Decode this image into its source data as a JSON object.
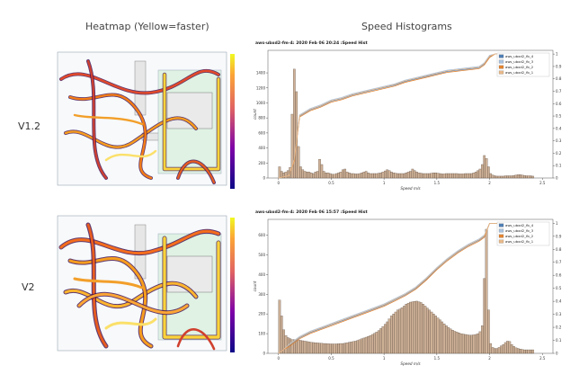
{
  "headers": {
    "heatmap": "Heatmap (Yellow=faster)",
    "histograms": "Speed Histograms"
  },
  "rows": [
    "V1.2",
    "V2"
  ],
  "chart_data": [
    {
      "type": "bar",
      "title": "aws-ubxd2-fm-4: 2020 Feb 06 20:24 :Speed Hist",
      "xlabel": "Speed m/s",
      "ylabel": "count",
      "xlim": [
        -0.1,
        2.6
      ],
      "ylim": [
        0,
        1700
      ],
      "xticks": [
        "0",
        "0.5",
        "1",
        "1.5",
        "2",
        "2.5"
      ],
      "yticks": [
        "0",
        "200",
        "400",
        "600",
        "800",
        "1000",
        "1200",
        "1400"
      ],
      "y2ticks": [
        "0",
        "0.1",
        "0.2",
        "0.3",
        "0.4",
        "0.5",
        "0.6",
        "0.7",
        "0.8",
        "0.9",
        "1"
      ],
      "legend": [
        "aws_ubxd2_fb_4",
        "aws_ubxd2_fb_3",
        "aws_ubxd2_fb_2",
        "aws_ubxd2_fb_1"
      ],
      "legend_colors": [
        "#4f7fb5",
        "#aac3df",
        "#e38431",
        "#e8b98a"
      ],
      "bin_width": 0.02,
      "hist_x": [
        0.0,
        0.02,
        0.04,
        0.06,
        0.08,
        0.1,
        0.12,
        0.14,
        0.16,
        0.18,
        0.2,
        0.22,
        0.24,
        0.26,
        0.28,
        0.3,
        0.32,
        0.34,
        0.36,
        0.38,
        0.4,
        0.42,
        0.44,
        0.46,
        0.48,
        0.5,
        0.52,
        0.54,
        0.56,
        0.58,
        0.6,
        0.62,
        0.64,
        0.66,
        0.68,
        0.7,
        0.72,
        0.74,
        0.76,
        0.78,
        0.8,
        0.82,
        0.84,
        0.86,
        0.88,
        0.9,
        0.92,
        0.94,
        0.96,
        0.98,
        1.0,
        1.02,
        1.04,
        1.06,
        1.08,
        1.1,
        1.12,
        1.14,
        1.16,
        1.18,
        1.2,
        1.22,
        1.24,
        1.26,
        1.28,
        1.3,
        1.32,
        1.34,
        1.36,
        1.38,
        1.4,
        1.42,
        1.44,
        1.46,
        1.48,
        1.5,
        1.52,
        1.54,
        1.56,
        1.58,
        1.6,
        1.62,
        1.64,
        1.66,
        1.68,
        1.7,
        1.72,
        1.74,
        1.76,
        1.78,
        1.8,
        1.82,
        1.84,
        1.86,
        1.88,
        1.9,
        1.92,
        1.94,
        1.96,
        1.98,
        2.0,
        2.02,
        2.04,
        2.06,
        2.08,
        2.1,
        2.12,
        2.14,
        2.16,
        2.18,
        2.2,
        2.22,
        2.24,
        2.26,
        2.28,
        2.3,
        2.32,
        2.34,
        2.36,
        2.38,
        2.4
      ],
      "hist_y": [
        150,
        90,
        70,
        80,
        100,
        140,
        850,
        1450,
        1150,
        420,
        150,
        110,
        90,
        80,
        80,
        70,
        60,
        80,
        90,
        250,
        180,
        90,
        70,
        70,
        60,
        50,
        50,
        60,
        70,
        80,
        110,
        120,
        80,
        70,
        60,
        60,
        55,
        55,
        60,
        70,
        80,
        90,
        70,
        60,
        60,
        60,
        60,
        65,
        70,
        80,
        95,
        110,
        100,
        80,
        70,
        65,
        60,
        60,
        60,
        60,
        70,
        80,
        90,
        120,
        100,
        80,
        70,
        65,
        60,
        60,
        60,
        60,
        65,
        70,
        70,
        65,
        60,
        55,
        55,
        60,
        60,
        60,
        60,
        60,
        60,
        55,
        55,
        55,
        60,
        60,
        60,
        60,
        70,
        80,
        100,
        120,
        180,
        300,
        260,
        150,
        60,
        40,
        30,
        25,
        25,
        25,
        25,
        30,
        30,
        30,
        30,
        35,
        40,
        45,
        45,
        40,
        35,
        30,
        30,
        30,
        25
      ],
      "cdf_x": [
        0.0,
        0.1,
        0.15,
        0.2,
        0.3,
        0.4,
        0.5,
        0.6,
        0.7,
        0.8,
        0.9,
        1.0,
        1.1,
        1.2,
        1.3,
        1.4,
        1.5,
        1.6,
        1.7,
        1.8,
        1.9,
        1.95,
        2.0,
        2.05,
        2.1,
        2.5
      ],
      "cdf_y": [
        0.0,
        0.02,
        0.15,
        0.5,
        0.55,
        0.58,
        0.62,
        0.64,
        0.67,
        0.69,
        0.71,
        0.73,
        0.75,
        0.78,
        0.8,
        0.82,
        0.84,
        0.86,
        0.87,
        0.88,
        0.89,
        0.92,
        0.98,
        1.0,
        1.0,
        1.0
      ]
    },
    {
      "type": "bar",
      "title": "aws-ubxd2-fm-4: 2020 Feb 06 15:57 :Speed Hist",
      "xlabel": "Speed m/s",
      "ylabel": "count",
      "xlim": [
        -0.1,
        2.6
      ],
      "ylim": [
        0,
        680
      ],
      "xticks": [
        "0",
        "0.5",
        "1",
        "1.5",
        "2",
        "2.5"
      ],
      "yticks": [
        "0",
        "100",
        "200",
        "300",
        "400",
        "500",
        "600"
      ],
      "y2ticks": [
        "0",
        "0.1",
        "0.2",
        "0.3",
        "0.4",
        "0.5",
        "0.6",
        "0.7",
        "0.8",
        "0.9",
        "1"
      ],
      "legend": [
        "aws_ubxd2_fb_4",
        "aws_ubxd2_fb_3",
        "aws_ubxd2_fb_2",
        "aws_ubxd2_fb_1"
      ],
      "legend_colors": [
        "#4f7fb5",
        "#aac3df",
        "#e38431",
        "#e8b98a"
      ],
      "bin_width": 0.02,
      "hist_x": [
        0.0,
        0.02,
        0.04,
        0.06,
        0.08,
        0.1,
        0.12,
        0.14,
        0.16,
        0.18,
        0.2,
        0.22,
        0.24,
        0.26,
        0.28,
        0.3,
        0.32,
        0.34,
        0.36,
        0.38,
        0.4,
        0.42,
        0.44,
        0.46,
        0.48,
        0.5,
        0.52,
        0.54,
        0.56,
        0.58,
        0.6,
        0.62,
        0.64,
        0.66,
        0.68,
        0.7,
        0.72,
        0.74,
        0.76,
        0.78,
        0.8,
        0.82,
        0.84,
        0.86,
        0.88,
        0.9,
        0.92,
        0.94,
        0.96,
        0.98,
        1.0,
        1.02,
        1.04,
        1.06,
        1.08,
        1.1,
        1.12,
        1.14,
        1.16,
        1.18,
        1.2,
        1.22,
        1.24,
        1.26,
        1.28,
        1.3,
        1.32,
        1.34,
        1.36,
        1.38,
        1.4,
        1.42,
        1.44,
        1.46,
        1.48,
        1.5,
        1.52,
        1.54,
        1.56,
        1.58,
        1.6,
        1.62,
        1.64,
        1.66,
        1.68,
        1.7,
        1.72,
        1.74,
        1.76,
        1.78,
        1.8,
        1.82,
        1.84,
        1.86,
        1.88,
        1.9,
        1.92,
        1.94,
        1.96,
        1.98,
        2.0,
        2.02,
        2.04,
        2.06,
        2.08,
        2.1,
        2.12,
        2.14,
        2.16,
        2.18,
        2.2,
        2.22,
        2.24,
        2.26,
        2.28,
        2.3,
        2.32,
        2.34,
        2.36,
        2.38,
        2.4
      ],
      "hist_y": [
        270,
        190,
        120,
        90,
        80,
        75,
        70,
        70,
        70,
        68,
        66,
        64,
        62,
        60,
        58,
        56,
        55,
        54,
        53,
        52,
        51,
        50,
        50,
        49,
        48,
        48,
        48,
        48,
        49,
        50,
        50,
        52,
        54,
        56,
        58,
        60,
        62,
        66,
        70,
        74,
        78,
        82,
        86,
        90,
        96,
        102,
        108,
        116,
        126,
        136,
        148,
        160,
        175,
        190,
        200,
        210,
        220,
        225,
        232,
        240,
        250,
        255,
        260,
        262,
        264,
        265,
        262,
        258,
        250,
        240,
        230,
        220,
        210,
        200,
        190,
        180,
        170,
        160,
        150,
        140,
        132,
        124,
        118,
        112,
        108,
        104,
        100,
        98,
        96,
        94,
        92,
        92,
        94,
        96,
        100,
        110,
        140,
        380,
        630,
        220,
        50,
        30,
        25,
        25,
        30,
        38,
        45,
        55,
        62,
        60,
        45,
        35,
        28,
        25,
        22,
        20,
        18,
        18,
        18,
        18,
        18
      ],
      "cdf_x": [
        0.0,
        0.05,
        0.1,
        0.2,
        0.3,
        0.4,
        0.5,
        0.6,
        0.7,
        0.8,
        0.9,
        1.0,
        1.1,
        1.2,
        1.3,
        1.4,
        1.5,
        1.6,
        1.7,
        1.8,
        1.9,
        1.95,
        2.0,
        2.1,
        2.5
      ],
      "cdf_y": [
        0.0,
        0.03,
        0.06,
        0.12,
        0.16,
        0.19,
        0.22,
        0.25,
        0.28,
        0.31,
        0.34,
        0.37,
        0.41,
        0.45,
        0.5,
        0.57,
        0.65,
        0.72,
        0.78,
        0.83,
        0.87,
        0.9,
        1.0,
        1.0,
        1.0
      ]
    }
  ]
}
